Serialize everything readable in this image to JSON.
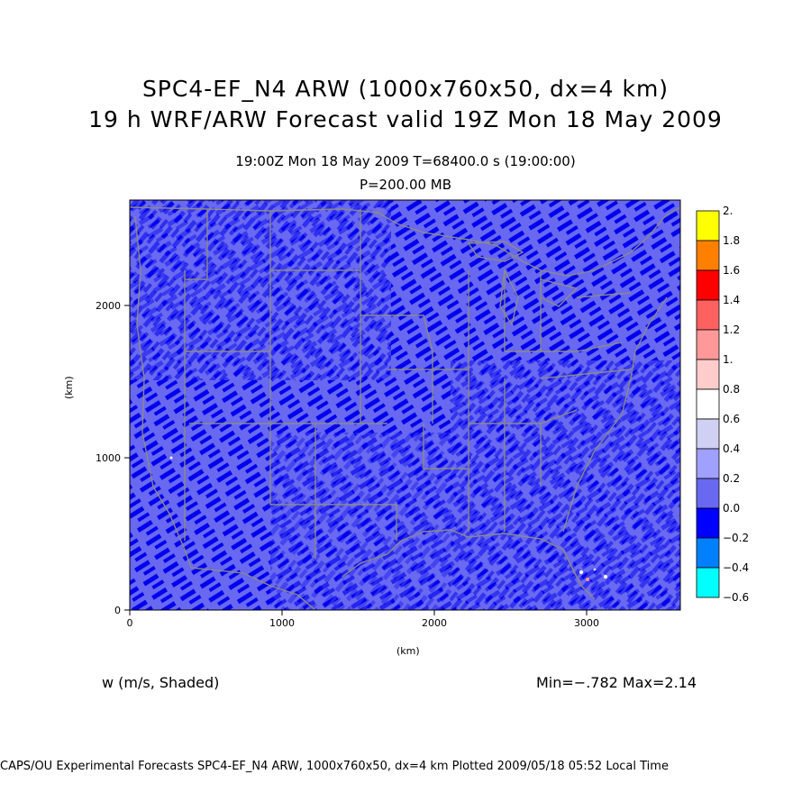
{
  "title": {
    "line1": "SPC4-EF_N4 ARW (1000x760x50, dx=4 km)",
    "line2": "19 h WRF/ARW Forecast valid 19Z Mon 18 May 2009"
  },
  "subtitle": {
    "time": "19:00Z Mon 18 May 2009     T=68400.0 s (19:00:00)",
    "level": "P=200.00 MB"
  },
  "axes": {
    "x_unit": "(km)",
    "y_unit": "(km)",
    "x_ticks": [
      "0",
      "1000",
      "2000",
      "3000"
    ],
    "y_ticks": [
      "0",
      "1000",
      "2000"
    ]
  },
  "colorbar": {
    "labels": [
      "2.",
      "1.8",
      "1.6",
      "1.4",
      "1.2",
      "1.",
      "0.8",
      "0.6",
      "0.4",
      "0.2",
      "0.0",
      "−0.2",
      "−0.4",
      "−0.6"
    ],
    "colors": [
      "#ffff00",
      "#ff8000",
      "#ff0000",
      "#ff6060",
      "#ff9898",
      "#ffcccc",
      "#ffffff",
      "#d0d0f4",
      "#a0a0ff",
      "#6868f0",
      "#0000ff",
      "#0080ff",
      "#00ffff"
    ]
  },
  "field": {
    "variable_label": "w (m/s, Shaded)",
    "minmax": "Min=−.782 Max=2.14"
  },
  "footer": "CAPS/OU Experimental Forecasts  SPC4-EF_N4 ARW, 1000x760x50, dx=4 km  Plotted 2009/05/18 05:52 Local Time",
  "colors": {
    "boundary": "#8a8a8a",
    "base_field": "#6a6af0",
    "strong_down": "#0000ee"
  }
}
